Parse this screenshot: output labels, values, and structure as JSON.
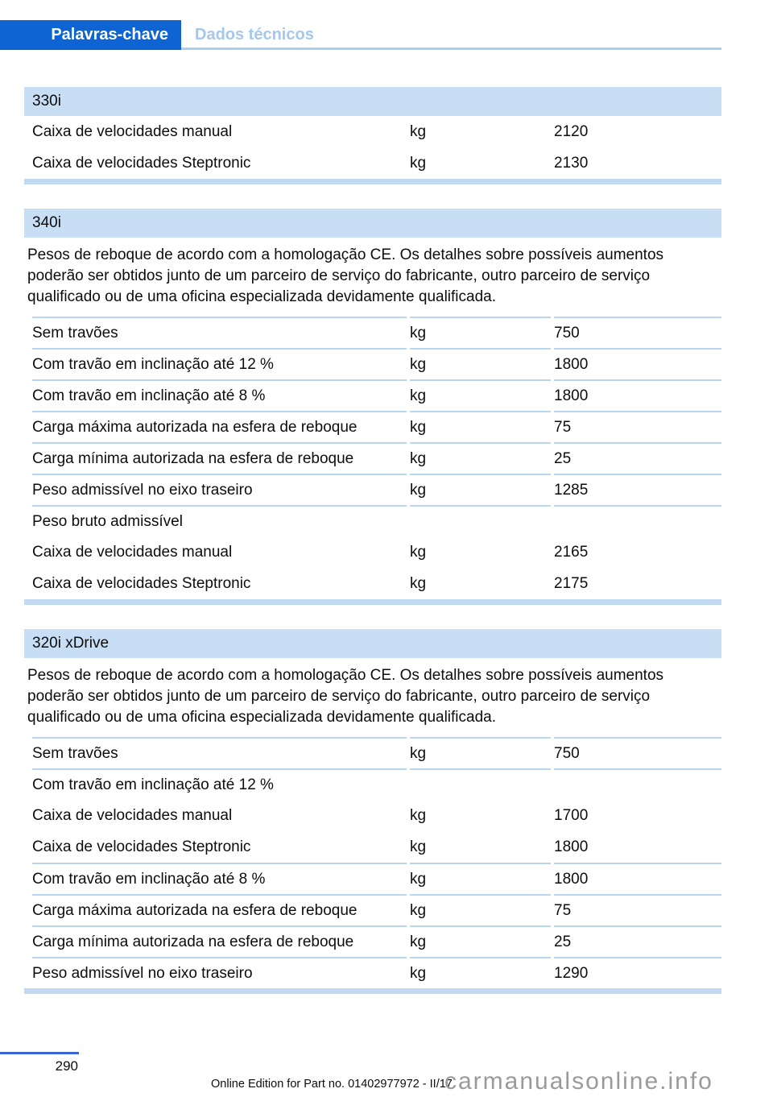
{
  "header": {
    "active_tab": "Palavras-chave",
    "inactive_tab": "Dados técnicos"
  },
  "sections": [
    {
      "title": "330i",
      "intro": "",
      "rows": [
        {
          "label": "Caixa de velocidades manual",
          "unit": "kg",
          "value": "2120",
          "line_above": false
        },
        {
          "label": "Caixa de velocidades Steptronic",
          "unit": "kg",
          "value": "2130",
          "line_above": false
        }
      ]
    },
    {
      "title": "340i",
      "intro": "Pesos de reboque de acordo com a homologação CE. Os detalhes sobre possíveis aumentos\npoderão ser obtidos junto de um parceiro de serviço do fabricante, outro parceiro de serviço\nqualificado ou de uma oficina especializada devidamente qualificada.",
      "rows": [
        {
          "label": "Sem travões",
          "unit": "kg",
          "value": "750",
          "line_above": true
        },
        {
          "label": "Com travão em inclinação até 12 %",
          "unit": "kg",
          "value": "1800",
          "line_above": true
        },
        {
          "label": "Com travão em inclinação até 8 %",
          "unit": "kg",
          "value": "1800",
          "line_above": true
        },
        {
          "label": "Carga máxima autorizada na esfera de reboque",
          "unit": "kg",
          "value": "75",
          "line_above": true
        },
        {
          "label": "Carga mínima autorizada na esfera de reboque",
          "unit": "kg",
          "value": "25",
          "line_above": true
        },
        {
          "label": "Peso admissível no eixo traseiro",
          "unit": "kg",
          "value": "1285",
          "line_above": true
        },
        {
          "label": "Peso bruto admissível",
          "unit": "",
          "value": "",
          "line_above": true
        },
        {
          "label": "Caixa de velocidades manual",
          "unit": "kg",
          "value": "2165",
          "line_above": false
        },
        {
          "label": "Caixa de velocidades Steptronic",
          "unit": "kg",
          "value": "2175",
          "line_above": false
        }
      ]
    },
    {
      "title": "320i xDrive",
      "intro": "Pesos de reboque de acordo com a homologação CE. Os detalhes sobre possíveis aumentos\npoderão ser obtidos junto de um parceiro de serviço do fabricante, outro parceiro de serviço\nqualificado ou de uma oficina especializada devidamente qualificada.",
      "rows": [
        {
          "label": "Sem travões",
          "unit": "kg",
          "value": "750",
          "line_above": true
        },
        {
          "label": "Com travão em inclinação até 12 %",
          "unit": "",
          "value": "",
          "line_above": true
        },
        {
          "label": "Caixa de velocidades manual",
          "unit": "kg",
          "value": "1700",
          "line_above": false
        },
        {
          "label": "Caixa de velocidades Steptronic",
          "unit": "kg",
          "value": "1800",
          "line_above": false
        },
        {
          "label": "Com travão em inclinação até 8 %",
          "unit": "kg",
          "value": "1800",
          "line_above": true
        },
        {
          "label": "Carga máxima autorizada na esfera de reboque",
          "unit": "kg",
          "value": "75",
          "line_above": true
        },
        {
          "label": "Carga mínima autorizada na esfera de reboque",
          "unit": "kg",
          "value": "25",
          "line_above": true
        },
        {
          "label": "Peso admissível no eixo traseiro",
          "unit": "kg",
          "value": "1290",
          "line_above": true
        }
      ]
    }
  ],
  "footer": {
    "page_number": "290",
    "edition_note": "Online Edition for Part no. 01402977972 - II/17",
    "watermark": "carmanualsonline.info"
  },
  "colors": {
    "tab_active_bg": "#0e64d2",
    "tab_inactive_text": "#a4c7ec",
    "header_underline": "#abcdee",
    "section_header_bg": "#c7def5",
    "row_separator": "#b9d6f1",
    "section_end_bar": "#c2d9f2",
    "page_number_rule": "#3b66d1",
    "watermark_text": "#9a9a9a"
  }
}
